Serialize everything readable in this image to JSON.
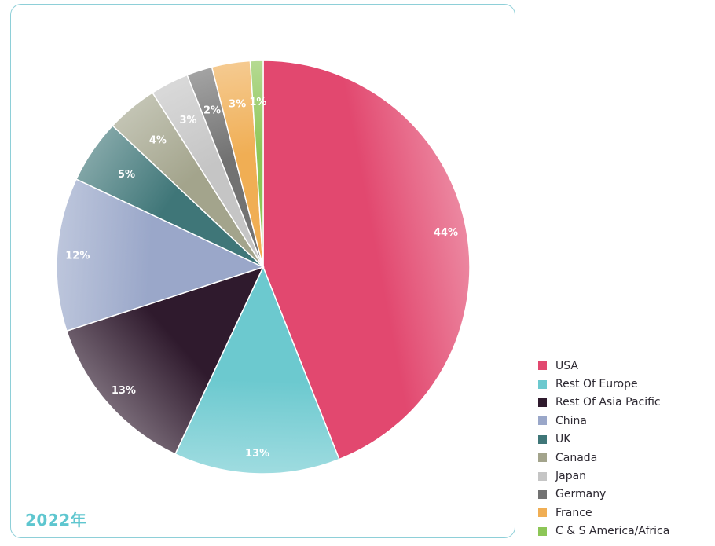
{
  "card": {
    "year_label": "2022年"
  },
  "chart_data": {
    "type": "pie",
    "title": "",
    "categories": [
      "USA",
      "Rest Of Europe",
      "Rest Of Asia Pacific",
      "China",
      "UK",
      "Canada",
      "Japan",
      "Germany",
      "France",
      "C & S America/Africa"
    ],
    "values": [
      44,
      13,
      13,
      12,
      5,
      4,
      3,
      2,
      3,
      1
    ],
    "labels": [
      "44%",
      "13%",
      "13%",
      "12%",
      "5%",
      "4%",
      "3%",
      "2%",
      "3%",
      "1%"
    ],
    "colors": [
      "#e2486f",
      "#6cc9cf",
      "#2f1a2d",
      "#9aa7c9",
      "#3f7678",
      "#a3a48c",
      "#c5c5c5",
      "#727272",
      "#f0ae54",
      "#8dc657"
    ],
    "legend_position": "bottom-right"
  }
}
